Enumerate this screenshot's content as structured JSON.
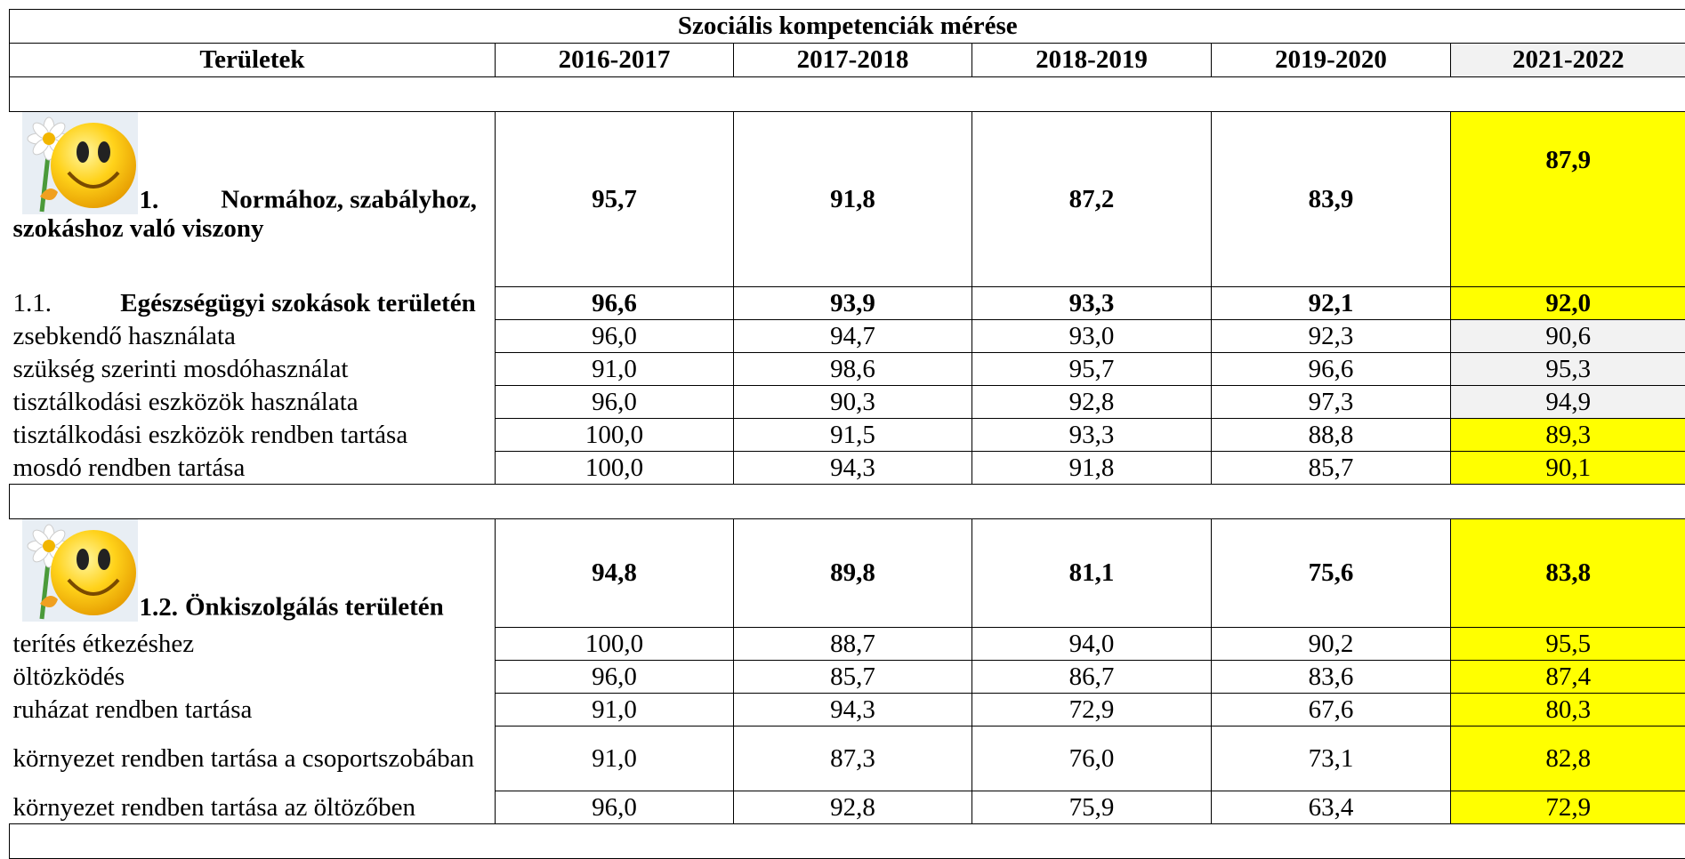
{
  "table": {
    "title": "Szociális kompetenciák mérése",
    "header": [
      "Területek",
      "2016-2017",
      "2017-2018",
      "2018-2019",
      "2019-2020",
      "2021-2022"
    ],
    "header_highlight": "#f2f2f2",
    "sections": [
      {
        "rows": [
          {
            "kind": "head",
            "number": "1.",
            "label": "Normához, szabályhoz, szokáshoz való viszony",
            "cells": [
              "95,7",
              "91,8",
              "87,2",
              "83,9",
              "87,9"
            ],
            "highlight": "#ffff00"
          },
          {
            "kind": "sub",
            "number": "1.1.",
            "label": "Egészségügyi szokások területén",
            "cells": [
              "96,6",
              "93,9",
              "93,3",
              "92,1",
              "92,0"
            ],
            "highlight": "#ffff00"
          },
          {
            "kind": "item",
            "label": "zsebkendő használata",
            "cells": [
              "96,0",
              "94,7",
              "93,0",
              "92,3",
              "90,6"
            ],
            "highlight": "#f2f2f2"
          },
          {
            "kind": "item",
            "label": "szükség szerinti mosdóhasználat",
            "cells": [
              "91,0",
              "98,6",
              "95,7",
              "96,6",
              "95,3"
            ],
            "highlight": "#f2f2f2"
          },
          {
            "kind": "item",
            "label": "tisztálkodási eszközök használata",
            "cells": [
              "96,0",
              "90,3",
              "92,8",
              "97,3",
              "94,9"
            ],
            "highlight": "#f2f2f2"
          },
          {
            "kind": "item",
            "label": "tisztálkodási eszközök rendben tartása",
            "cells": [
              "100,0",
              "91,5",
              "93,3",
              "88,8",
              "89,3"
            ],
            "highlight": "#ffff00"
          },
          {
            "kind": "item",
            "label": "mosdó rendben tartása",
            "cells": [
              "100,0",
              "94,3",
              "91,8",
              "85,7",
              "90,1"
            ],
            "highlight": "#ffff00"
          }
        ]
      },
      {
        "rows": [
          {
            "kind": "head",
            "number": "1.2.",
            "label": "Önkiszolgálás területén",
            "cells": [
              "94,8",
              "89,8",
              "81,1",
              "75,6",
              "83,8"
            ],
            "highlight": "#ffff00"
          },
          {
            "kind": "item",
            "label": "terítés étkezéshez",
            "cells": [
              "100,0",
              "88,7",
              "94,0",
              "90,2",
              "95,5"
            ],
            "highlight": "#ffff00"
          },
          {
            "kind": "item",
            "label": "öltözködés",
            "cells": [
              "96,0",
              "85,7",
              "86,7",
              "83,6",
              "87,4"
            ],
            "highlight": "#ffff00"
          },
          {
            "kind": "item",
            "label": "ruházat rendben tartása",
            "cells": [
              "91,0",
              "94,3",
              "72,9",
              "67,6",
              "80,3"
            ],
            "highlight": "#ffff00"
          },
          {
            "kind": "item",
            "label": "környezet rendben tartása a csoportszobában",
            "cells": [
              "91,0",
              "87,3",
              "76,0",
              "73,1",
              "82,8"
            ],
            "highlight": "#ffff00"
          },
          {
            "kind": "item",
            "label": "környezet rendben tartása az öltözőben",
            "cells": [
              "96,0",
              "92,8",
              "75,9",
              "63,4",
              "72,9"
            ],
            "highlight": "#ffff00"
          }
        ]
      }
    ]
  }
}
